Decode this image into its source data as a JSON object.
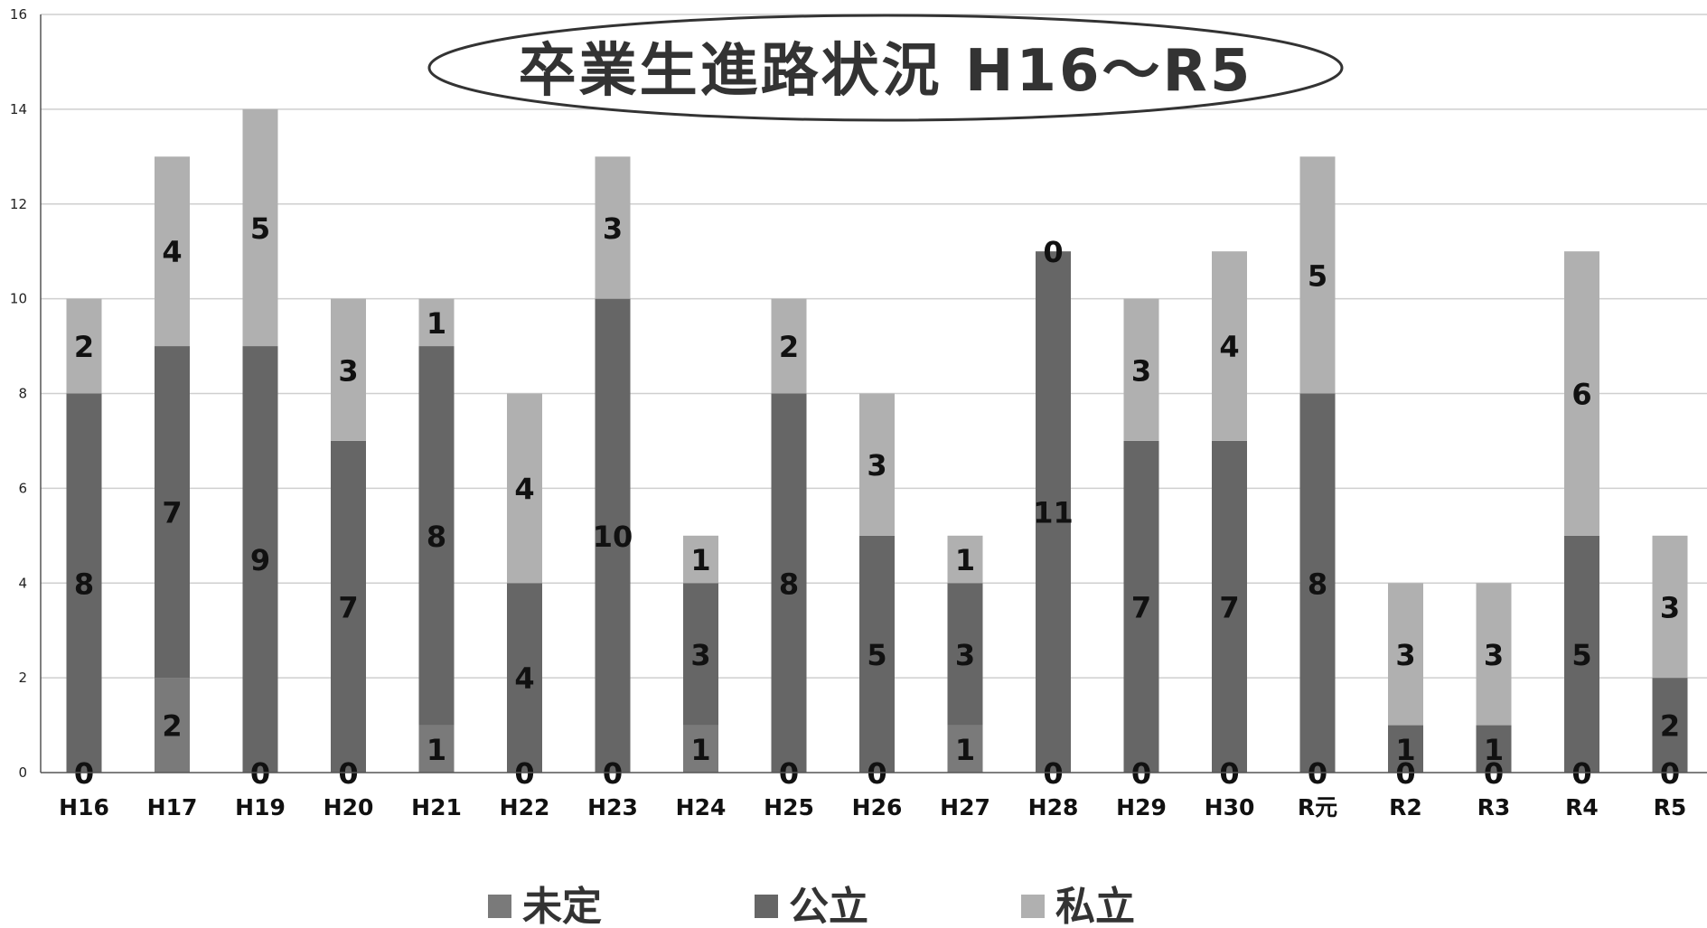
{
  "chart_data": {
    "type": "bar",
    "stacked": true,
    "title": "卒業生進路状況 H16～R5",
    "categories": [
      "H16",
      "H17",
      "H19",
      "H20",
      "H21",
      "H22",
      "H23",
      "H24",
      "H25",
      "H26",
      "H27",
      "H28",
      "H29",
      "H30",
      "R元",
      "R2",
      "R3",
      "R4",
      "R5"
    ],
    "series": [
      {
        "name": "未定",
        "color": "#7a7a7a",
        "values": [
          0,
          2,
          0,
          0,
          1,
          0,
          0,
          1,
          0,
          0,
          1,
          0,
          0,
          0,
          0,
          0,
          0,
          0,
          0
        ]
      },
      {
        "name": "公立",
        "color": "#666666",
        "values": [
          8,
          7,
          9,
          7,
          8,
          4,
          10,
          3,
          8,
          5,
          3,
          11,
          7,
          7,
          8,
          1,
          1,
          5,
          2
        ]
      },
      {
        "name": "私立",
        "color": "#b0b0b0",
        "values": [
          2,
          4,
          5,
          3,
          1,
          4,
          3,
          1,
          2,
          3,
          1,
          0,
          3,
          4,
          5,
          3,
          3,
          6,
          3
        ]
      }
    ],
    "ylim": [
      0,
      16
    ],
    "yticks": [
      0,
      2,
      4,
      6,
      8,
      10,
      12,
      14,
      16
    ],
    "grid": true,
    "legend_position": "bottom",
    "xlabel": "",
    "ylabel": ""
  }
}
